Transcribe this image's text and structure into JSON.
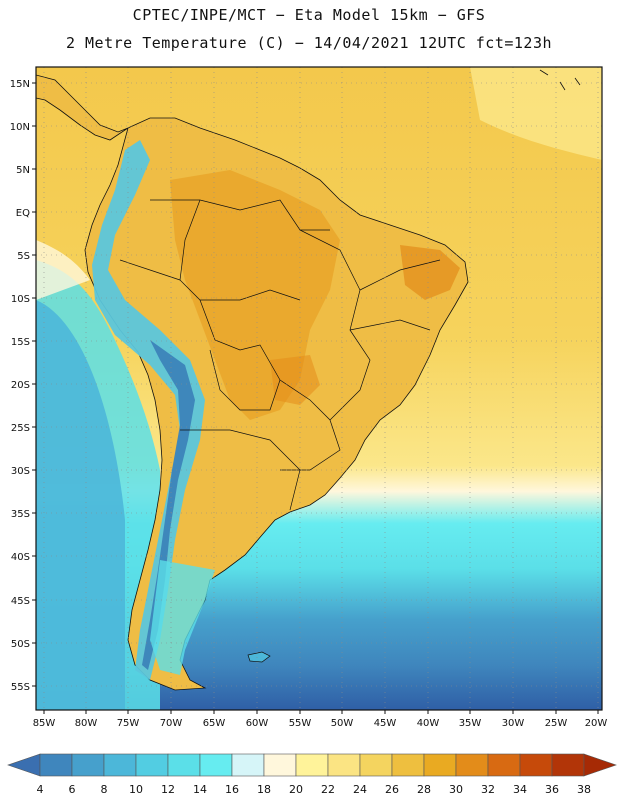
{
  "title_line1": "CPTEC/INPE/MCT −  Eta Model 15km − GFS",
  "title_line2": "2 Metre Temperature (C) − 14/04/2021 12UTC fct=123h",
  "lat_labels": [
    "15N",
    "10N",
    "5N",
    "EQ",
    "5S",
    "10S",
    "15S",
    "20S",
    "25S",
    "30S",
    "35S",
    "40S",
    "45S",
    "50S",
    "55S"
  ],
  "lon_labels": [
    "85W",
    "80W",
    "75W",
    "70W",
    "65W",
    "60W",
    "55W",
    "50W",
    "45W",
    "40W",
    "35W",
    "30W",
    "25W",
    "20W"
  ],
  "colorbar": {
    "levels": [
      "4",
      "6",
      "8",
      "10",
      "12",
      "14",
      "16",
      "18",
      "20",
      "22",
      "24",
      "26",
      "28",
      "30",
      "32",
      "34",
      "36",
      "38"
    ],
    "colors": [
      "#3a6fb0",
      "#3f86bd",
      "#46a0cc",
      "#4cb7d9",
      "#52cde2",
      "#5bdfe8",
      "#66ecf0",
      "#d6f5f8",
      "#fff7dc",
      "#fff39a",
      "#fbe483",
      "#f4d45f",
      "#eebf3f",
      "#e9aa22",
      "#e38c1a",
      "#d86a12",
      "#c64a0a",
      "#b23508",
      "#a62a05"
    ]
  },
  "map_colors": {
    "ocean_warm": "#f6d35c",
    "ocean_warmer": "#f3c84c",
    "ocean_tropical_light": "#fbe78a",
    "ocean_cool": "#5bdfe8",
    "ocean_cold": "#4cb7d9",
    "ocean_colder": "#3f86bd",
    "ocean_coldest": "#2f5fa6",
    "land_hot": "#e9a62a",
    "land_warm": "#efbd45",
    "andes": "#5bc6dc",
    "andes_cold": "#3a7fb8",
    "border": "#111111"
  }
}
